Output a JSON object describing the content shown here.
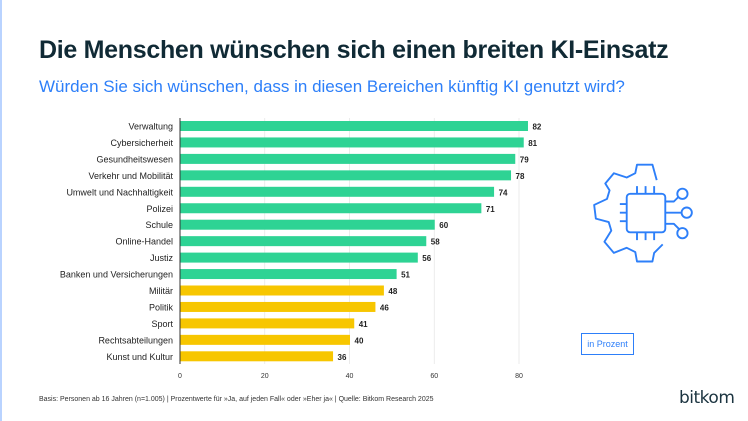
{
  "title": "Die Menschen wünschen sich einen breiten KI-Einsatz",
  "subtitle": "Würden Sie sich wünschen, dass in diesen Bereichen künftig KI genutzt wird?",
  "unit_label": "in Prozent",
  "footer": "Basis: Personen ab 16 Jahren (n=1.005) | Prozentwerte für »Ja, auf jeden Fall« oder »Eher ja« | Quelle: Bitkom Research 2025",
  "logo": "bitkom",
  "icon": "chip-gear-icon",
  "colors": {
    "green": "#2ed394",
    "yellow": "#f7c600",
    "accent": "#2d7ff9"
  },
  "chart_data": {
    "type": "bar",
    "orientation": "horizontal",
    "categories": [
      "Verwaltung",
      "Cybersicherheit",
      "Gesundheitswesen",
      "Verkehr und Mobilität",
      "Umwelt und Nachhaltigkeit",
      "Polizei",
      "Schule",
      "Online-Handel",
      "Justiz",
      "Banken und Versicherungen",
      "Militär",
      "Politik",
      "Sport",
      "Rechtsabteilungen",
      "Kunst und Kultur"
    ],
    "values": [
      82,
      81,
      79,
      78,
      74,
      71,
      60,
      58,
      56,
      51,
      48,
      46,
      41,
      40,
      36
    ],
    "bar_colors": [
      "green",
      "green",
      "green",
      "green",
      "green",
      "green",
      "green",
      "green",
      "green",
      "green",
      "yellow",
      "yellow",
      "yellow",
      "yellow",
      "yellow"
    ],
    "xticks": [
      0,
      20,
      40,
      60,
      80
    ],
    "xlim": [
      0,
      85
    ],
    "grid": true
  }
}
